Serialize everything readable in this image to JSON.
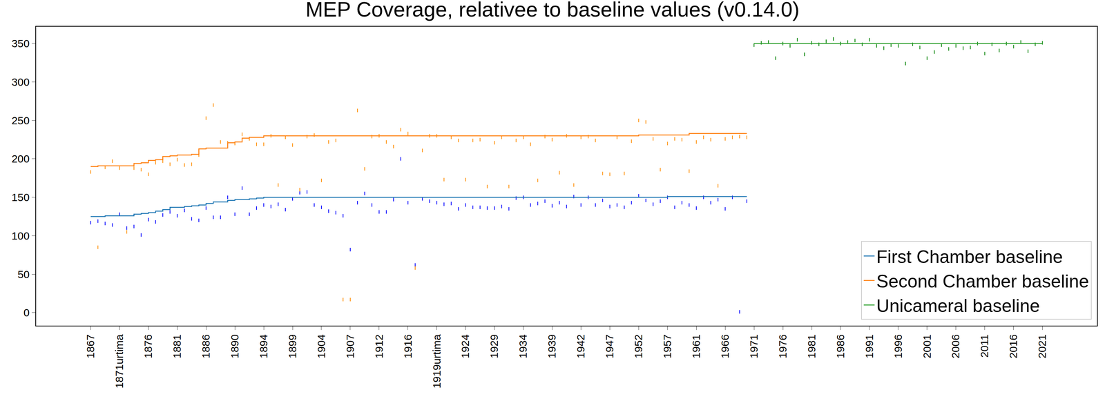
{
  "chart_data": {
    "type": "line",
    "title": "MEP Coverage, relativee to baseline values (v0.14.0)",
    "categories": [
      "1867",
      null,
      null,
      null,
      "1871urtima",
      null,
      null,
      null,
      "1876",
      null,
      null,
      null,
      "1881",
      null,
      null,
      null,
      "1886",
      null,
      null,
      null,
      "1890",
      null,
      null,
      null,
      "1894",
      null,
      null,
      null,
      "1899",
      null,
      null,
      null,
      "1904",
      null,
      null,
      null,
      "1907",
      null,
      null,
      null,
      "1912",
      null,
      null,
      null,
      "1916",
      null,
      null,
      null,
      "1919urtima",
      null,
      null,
      null,
      "1924",
      null,
      null,
      null,
      "1929",
      null,
      null,
      null,
      "1934",
      null,
      null,
      null,
      "1939",
      null,
      null,
      null,
      "1942",
      null,
      null,
      null,
      "1947",
      null,
      null,
      null,
      "1952",
      null,
      null,
      null,
      "1957",
      null,
      null,
      null,
      "1961",
      null,
      null,
      null,
      "1966",
      null,
      null,
      null,
      "1971",
      null,
      null,
      null,
      "1976",
      null,
      null,
      null,
      "1981",
      null,
      null,
      null,
      "1986",
      null,
      null,
      null,
      "1991",
      null,
      null,
      null,
      "1996",
      null,
      null,
      null,
      "2001",
      null,
      null,
      null,
      "2006",
      null,
      null,
      null,
      "2011",
      null,
      null,
      null,
      "2016",
      null,
      null,
      null,
      "2021"
    ],
    "ylim": [
      -17,
      372
    ],
    "yticks": [
      0,
      50,
      100,
      150,
      200,
      250,
      300,
      350
    ],
    "grid": false,
    "legend": "lower right",
    "series": [
      {
        "type": "scatter",
        "marker": "vline",
        "color": "#0000ff",
        "values": [
          117,
          119,
          116,
          114,
          128,
          110,
          112,
          101,
          121,
          118,
          127,
          131,
          126,
          133,
          122,
          120,
          136,
          124,
          124,
          150,
          128,
          162,
          128,
          136,
          140,
          138,
          141,
          134,
          148,
          156,
          157,
          140,
          137,
          132,
          130,
          126,
          82,
          143,
          155,
          140,
          131,
          131,
          147,
          200,
          143,
          62,
          148,
          145,
          143,
          141,
          142,
          135,
          140,
          137,
          137,
          136,
          136,
          138,
          135,
          149,
          150,
          140,
          142,
          145,
          139,
          143,
          138,
          151,
          140,
          150,
          140,
          146,
          138,
          140,
          137,
          143,
          152,
          146,
          141,
          145,
          150,
          137,
          143,
          140,
          136,
          150,
          143,
          147,
          135,
          150,
          1,
          145,
          null,
          null,
          null,
          null,
          null,
          null,
          null,
          null,
          null,
          null,
          null,
          null,
          null,
          null,
          null,
          null,
          null,
          null,
          null,
          null,
          null,
          null,
          null,
          null,
          null,
          null,
          null,
          null,
          null,
          null,
          null,
          null,
          null,
          null,
          null,
          null,
          null,
          null,
          null,
          null,
          null
        ]
      },
      {
        "type": "scatter",
        "marker": "vline",
        "color": "#ff8c00",
        "values": [
          183,
          85,
          189,
          197,
          188,
          105,
          188,
          186,
          180,
          195,
          197,
          193,
          199,
          192,
          193,
          205,
          253,
          270,
          222,
          221,
          220,
          232,
          226,
          219,
          219,
          230,
          166,
          228,
          218,
          160,
          229,
          231,
          172,
          222,
          224,
          17,
          17,
          263,
          187,
          229,
          230,
          222,
          216,
          238,
          233,
          58,
          211,
          230,
          230,
          173,
          228,
          224,
          173,
          224,
          225,
          164,
          221,
          228,
          164,
          224,
          228,
          219,
          172,
          229,
          225,
          182,
          230,
          166,
          228,
          229,
          224,
          181,
          180,
          228,
          181,
          223,
          250,
          248,
          226,
          186,
          220,
          226,
          225,
          184,
          222,
          228,
          225,
          165,
          226,
          228,
          229,
          228,
          null,
          null,
          null,
          null,
          null,
          null,
          null,
          null,
          null,
          null,
          null,
          null,
          null,
          null,
          null,
          null,
          null,
          null,
          null,
          null,
          null,
          null,
          null,
          null,
          null,
          null,
          null,
          null,
          null,
          null,
          null,
          null,
          null,
          null,
          null,
          null,
          null,
          null,
          null,
          null,
          null
        ]
      },
      {
        "type": "scatter",
        "marker": "vline",
        "color": "#008000",
        "values": [
          null,
          null,
          null,
          null,
          null,
          null,
          null,
          null,
          null,
          null,
          null,
          null,
          null,
          null,
          null,
          null,
          null,
          null,
          null,
          null,
          null,
          null,
          null,
          null,
          null,
          null,
          null,
          null,
          null,
          null,
          null,
          null,
          null,
          null,
          null,
          null,
          null,
          null,
          null,
          null,
          null,
          null,
          null,
          null,
          null,
          null,
          null,
          null,
          null,
          null,
          null,
          null,
          null,
          null,
          null,
          null,
          null,
          null,
          null,
          null,
          null,
          null,
          null,
          null,
          null,
          null,
          null,
          null,
          null,
          null,
          null,
          null,
          null,
          null,
          null,
          null,
          null,
          null,
          null,
          null,
          null,
          null,
          null,
          null,
          null,
          null,
          null,
          null,
          null,
          null,
          null,
          null,
          348,
          351,
          352,
          331,
          350,
          347,
          355,
          336,
          351,
          349,
          353,
          356,
          350,
          352,
          354,
          349,
          355,
          347,
          344,
          348,
          347,
          324,
          349,
          345,
          331,
          339,
          348,
          343,
          347,
          344,
          345,
          350,
          337,
          349,
          341,
          350,
          346,
          352,
          340,
          349,
          351
        ]
      },
      {
        "name": "First Chamber baseline",
        "type": "line",
        "line_style": "steps",
        "color": "#1f77b4",
        "values": [
          125,
          125,
          126,
          126,
          126,
          126,
          128,
          129,
          130,
          132,
          134,
          137,
          137,
          138,
          139,
          140,
          142,
          144,
          144,
          146,
          147,
          147,
          148,
          149,
          150,
          150,
          150,
          150,
          150,
          150,
          150,
          150,
          150,
          150,
          150,
          150,
          150,
          150,
          150,
          150,
          150,
          150,
          150,
          150,
          150,
          150,
          150,
          150,
          150,
          150,
          150,
          150,
          150,
          150,
          150,
          150,
          150,
          150,
          150,
          150,
          150,
          150,
          150,
          150,
          150,
          150,
          150,
          150,
          150,
          150,
          150,
          150,
          150,
          150,
          150,
          150,
          150,
          150,
          150,
          150,
          151,
          151,
          151,
          151,
          151,
          151,
          151,
          151,
          151,
          151,
          151,
          151,
          null,
          null,
          null,
          null,
          null,
          null,
          null,
          null,
          null,
          null,
          null,
          null,
          null,
          null,
          null,
          null,
          null,
          null,
          null,
          null,
          null,
          null,
          null,
          null,
          null,
          null,
          null,
          null,
          null,
          null,
          null,
          null,
          null,
          null,
          null,
          null,
          null,
          null,
          null,
          null,
          null
        ]
      },
      {
        "name": "Second Chamber baseline",
        "type": "line",
        "line_style": "steps",
        "color": "#ff7f0e",
        "values": [
          190,
          191,
          191,
          191,
          191,
          191,
          194,
          195,
          198,
          199,
          203,
          204,
          205,
          205,
          206,
          213,
          214,
          214,
          214,
          221,
          222,
          227,
          228,
          228,
          230,
          230,
          230,
          230,
          230,
          230,
          230,
          230,
          230,
          230,
          230,
          230,
          230,
          230,
          230,
          230,
          230,
          230,
          230,
          230,
          230,
          230,
          230,
          230,
          230,
          230,
          230,
          230,
          230,
          230,
          230,
          230,
          230,
          230,
          230,
          230,
          230,
          230,
          230,
          230,
          230,
          230,
          230,
          230,
          230,
          230,
          230,
          230,
          230,
          230,
          230,
          230,
          231,
          231,
          231,
          231,
          231,
          231,
          231,
          233,
          233,
          233,
          233,
          233,
          233,
          233,
          233,
          233,
          null,
          null,
          null,
          null,
          null,
          null,
          null,
          null,
          null,
          null,
          null,
          null,
          null,
          null,
          null,
          null,
          null,
          null,
          null,
          null,
          null,
          null,
          null,
          null,
          null,
          null,
          null,
          null,
          null,
          null,
          null,
          null,
          null,
          null,
          null,
          null,
          null,
          null,
          null,
          null,
          null
        ]
      },
      {
        "name": "Unicameral baseline",
        "type": "line",
        "line_style": "steps",
        "color": "#2ca02c",
        "values": [
          null,
          null,
          null,
          null,
          null,
          null,
          null,
          null,
          null,
          null,
          null,
          null,
          null,
          null,
          null,
          null,
          null,
          null,
          null,
          null,
          null,
          null,
          null,
          null,
          null,
          null,
          null,
          null,
          null,
          null,
          null,
          null,
          null,
          null,
          null,
          null,
          null,
          null,
          null,
          null,
          null,
          null,
          null,
          null,
          null,
          null,
          null,
          null,
          null,
          null,
          null,
          null,
          null,
          null,
          null,
          null,
          null,
          null,
          null,
          null,
          null,
          null,
          null,
          null,
          null,
          null,
          null,
          null,
          null,
          null,
          null,
          null,
          null,
          null,
          null,
          null,
          null,
          null,
          null,
          null,
          null,
          null,
          null,
          null,
          null,
          null,
          null,
          null,
          null,
          null,
          null,
          null,
          350,
          350,
          350,
          350,
          350,
          350,
          350,
          350,
          350,
          350,
          350,
          350,
          350,
          350,
          350,
          350,
          350,
          350,
          350,
          350,
          350,
          350,
          350,
          350,
          350,
          350,
          350,
          350,
          350,
          350,
          350,
          350,
          350,
          350,
          350,
          350,
          350,
          350,
          350,
          350,
          350
        ]
      }
    ]
  }
}
